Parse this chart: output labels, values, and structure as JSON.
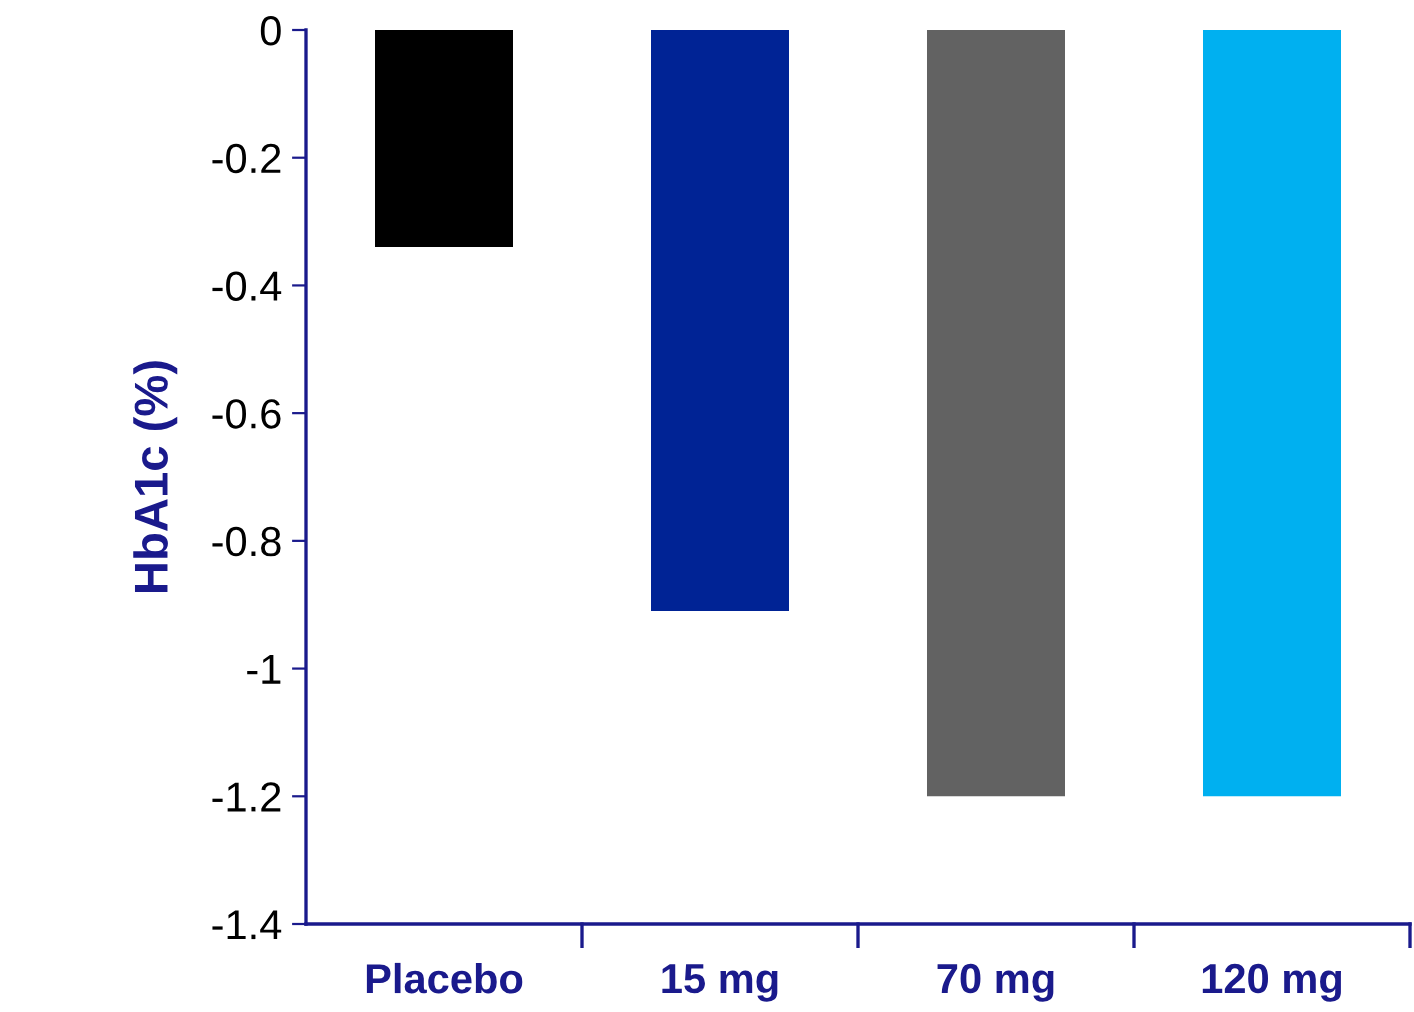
{
  "chart_data": {
    "type": "bar",
    "ylabel": "HbA1c (%)",
    "categories": [
      "Placebo",
      "15 mg",
      "70 mg",
      "120 mg"
    ],
    "values": [
      -0.34,
      -0.91,
      -1.2,
      -1.2
    ],
    "colors": [
      "#000000",
      "#002395",
      "#626262",
      "#00b0f0"
    ],
    "ylim": [
      -1.4,
      0
    ],
    "yticks": [
      -1.4,
      -1.2,
      -1,
      -0.8,
      -0.6,
      -0.4,
      -0.2,
      0
    ],
    "grid": false,
    "legend": false
  }
}
